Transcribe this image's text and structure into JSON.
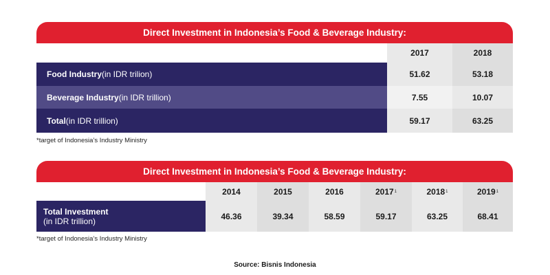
{
  "table1": {
    "title": "Direct Investment in Indonesia’s Food & Beverage Industry:",
    "years": [
      "2017",
      "2018"
    ],
    "rows": [
      {
        "label_bold": "Food Industry",
        "label_unit": " (in IDR trilion)",
        "values": [
          "51.62",
          "53.18"
        ]
      },
      {
        "label_bold": "Beverage Industry",
        "label_unit": " (in IDR trillion)",
        "values": [
          "7.55",
          "10.07"
        ]
      },
      {
        "label_bold": "Total",
        "label_unit": " (in IDR trillion)",
        "values": [
          "59.17",
          "63.25"
        ]
      }
    ],
    "footnote": "*target of Indonesia’s Industry Ministry"
  },
  "table2": {
    "title": "Direct Investment in Indonesia’s Food & Beverage Industry:",
    "years": [
      "2014",
      "2015",
      "2016",
      "2017",
      "2018",
      "2019"
    ],
    "year_marks": [
      "",
      "",
      "",
      "1",
      "1",
      "1"
    ],
    "row_label_bold": "Total Investment",
    "row_label_unit": "(in IDR trillion)",
    "values": [
      "46.36",
      "39.34",
      "58.59",
      "59.17",
      "63.25",
      "68.41"
    ],
    "footnote": "*target of Indonesia’s Industry Ministry"
  },
  "source": "Source: Bisnis Indonesia",
  "colors": {
    "banner": "#e0202f",
    "navy": "#2b2563",
    "mid_purple": "#514b86"
  }
}
